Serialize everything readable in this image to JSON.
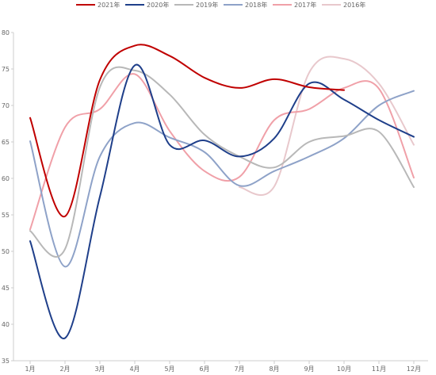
{
  "chart_data": {
    "type": "line",
    "title": "",
    "xlabel": "",
    "ylabel": "",
    "categories": [
      "1月",
      "2月",
      "3月",
      "4月",
      "5月",
      "6月",
      "7月",
      "8月",
      "9月",
      "10月",
      "11月",
      "12月"
    ],
    "ylim": [
      35,
      80
    ],
    "yticks": [
      35,
      40,
      45,
      50,
      55,
      60,
      65,
      70,
      75,
      80
    ],
    "grid": false,
    "legend_position": "top",
    "series": [
      {
        "name": "2021年",
        "color": "#c00000",
        "values": [
          68.3,
          54.8,
          73.5,
          78.2,
          76.8,
          73.8,
          72.4,
          73.6,
          72.5,
          72.1,
          null,
          null
        ]
      },
      {
        "name": "2020年",
        "color": "#1f3f8a",
        "values": [
          51.4,
          38.1,
          57.5,
          75.5,
          64.6,
          65.2,
          63.0,
          65.5,
          73.0,
          70.8,
          68.0,
          65.7
        ]
      },
      {
        "name": "2019年",
        "color": "#b8b8b8",
        "values": [
          52.8,
          50.3,
          72.5,
          74.8,
          71.5,
          66.0,
          63.0,
          61.5,
          65.0,
          65.8,
          66.4,
          58.8
        ]
      },
      {
        "name": "2018年",
        "color": "#8ea2c8",
        "values": [
          65.1,
          47.9,
          63.0,
          67.6,
          65.6,
          63.6,
          59.0,
          61.0,
          63.0,
          65.5,
          70.0,
          72.0
        ]
      },
      {
        "name": "2017年",
        "color": "#f0a0a8",
        "values": [
          53.0,
          67.0,
          69.5,
          74.3,
          66.5,
          61.0,
          60.2,
          68.0,
          69.5,
          72.4,
          72.3,
          60.1
        ]
      },
      {
        "name": "2016年",
        "color": "#e8c8cc",
        "values": [
          null,
          null,
          null,
          null,
          null,
          null,
          58.8,
          58.9,
          74.5,
          76.4,
          73.0,
          64.6
        ]
      }
    ]
  }
}
